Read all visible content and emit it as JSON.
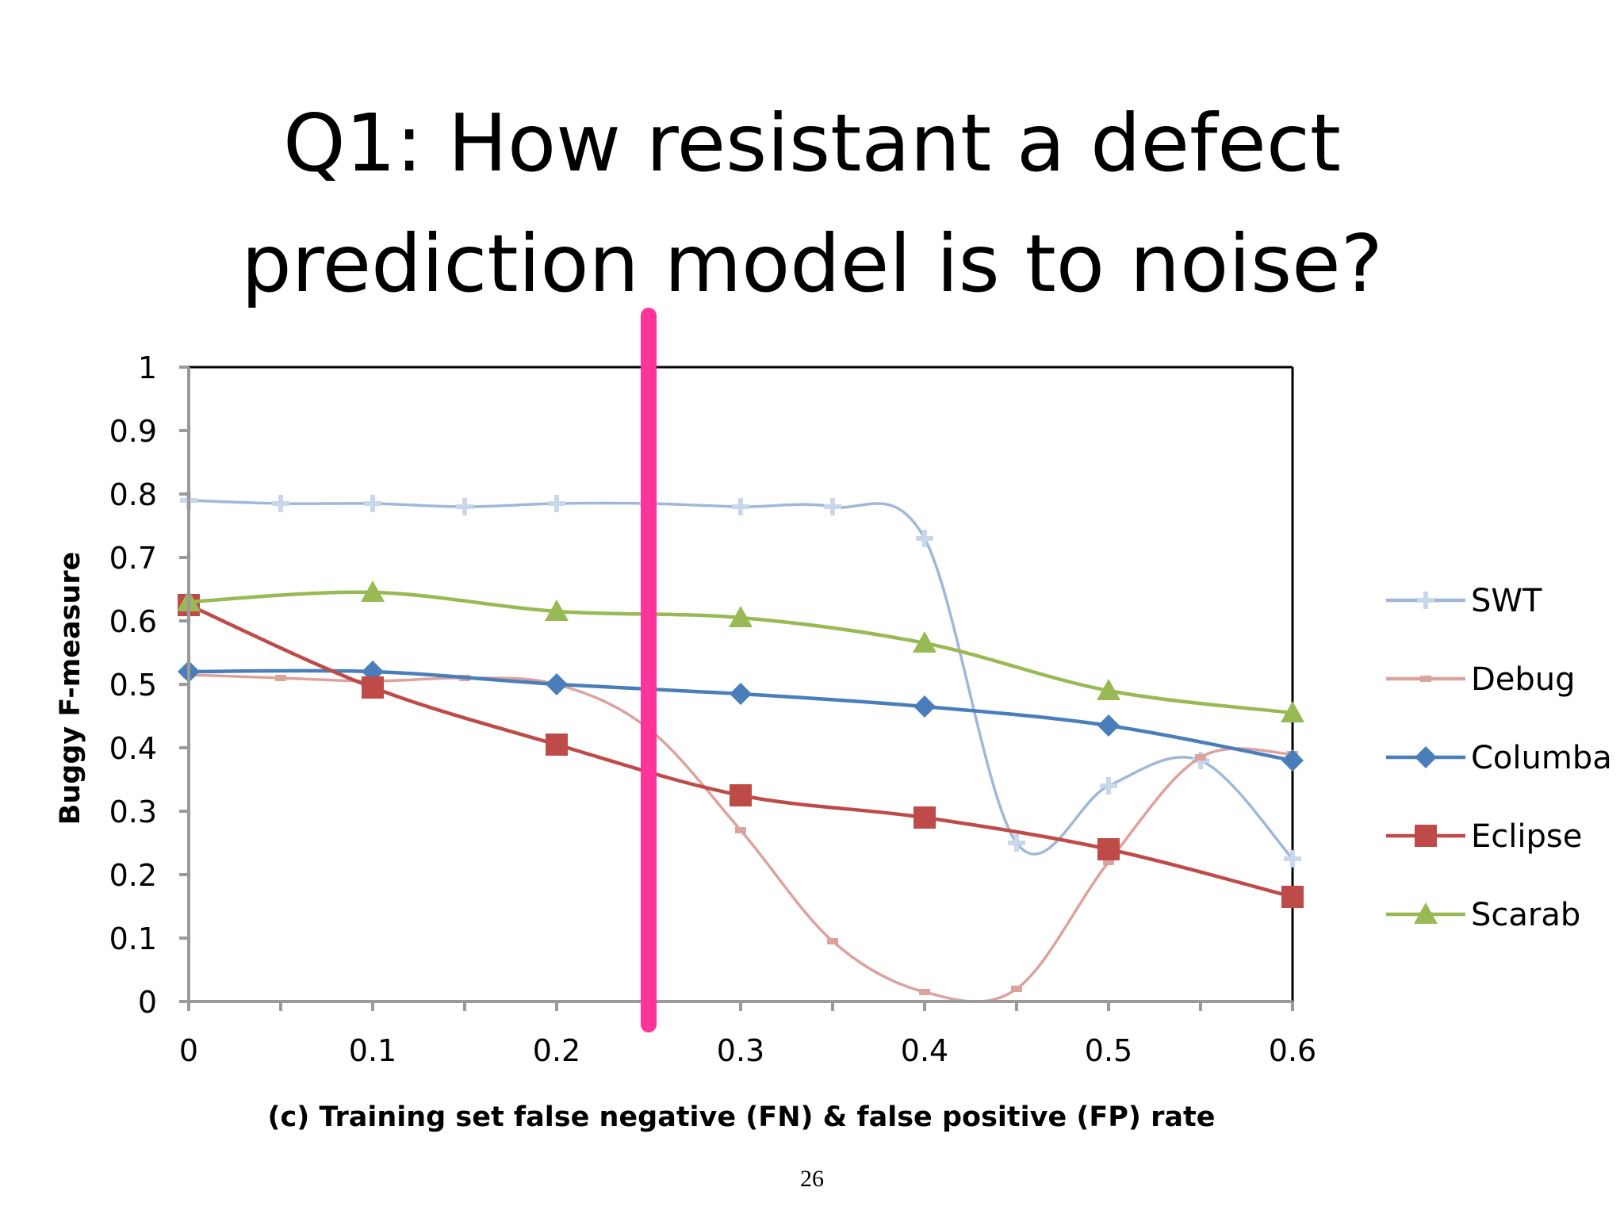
{
  "slide": {
    "title_line1": "Q1: How resistant a defect",
    "title_line2": "prediction model is to noise?",
    "page_number": "26"
  },
  "chart_data": {
    "type": "line",
    "title": "",
    "xlabel": "(c) Training set false negative (FN) & false positive (FP) rate",
    "ylabel": "Buggy F-measure",
    "xlim": [
      0,
      0.6
    ],
    "ylim": [
      0,
      1
    ],
    "x_ticks": [
      "0",
      "0.1",
      "0.2",
      "0.3",
      "0.4",
      "0.5",
      "0.6"
    ],
    "y_ticks": [
      "0",
      "0.1",
      "0.2",
      "0.3",
      "0.4",
      "0.5",
      "0.6",
      "0.7",
      "0.8",
      "0.9",
      "1"
    ],
    "legend_position": "right",
    "grid": false,
    "marker_line": {
      "x": 0.25,
      "color": "#ff3399"
    },
    "series": [
      {
        "name": "SWT",
        "color": "#9fb8d9",
        "marker": "plus",
        "x": [
          0,
          0.05,
          0.1,
          0.15,
          0.2,
          0.25,
          0.3,
          0.35,
          0.4,
          0.45,
          0.5,
          0.55,
          0.6
        ],
        "y": [
          0.79,
          0.785,
          0.785,
          0.78,
          0.785,
          0.785,
          0.78,
          0.78,
          0.73,
          0.25,
          0.34,
          0.38,
          0.225
        ]
      },
      {
        "name": "Debug",
        "color": "#dca29e",
        "marker": "dash",
        "x": [
          0,
          0.05,
          0.1,
          0.15,
          0.2,
          0.25,
          0.3,
          0.35,
          0.4,
          0.45,
          0.5,
          0.55,
          0.6
        ],
        "y": [
          0.515,
          0.51,
          0.505,
          0.51,
          0.5,
          0.43,
          0.27,
          0.095,
          0.015,
          0.02,
          0.22,
          0.385,
          0.39
        ]
      },
      {
        "name": "Columba",
        "color": "#4a7ebb",
        "marker": "diamond",
        "x": [
          0,
          0.1,
          0.2,
          0.3,
          0.4,
          0.5,
          0.6
        ],
        "y": [
          0.52,
          0.52,
          0.5,
          0.485,
          0.465,
          0.435,
          0.38
        ]
      },
      {
        "name": "Eclipse",
        "color": "#be4b48",
        "marker": "square",
        "x": [
          0,
          0.1,
          0.2,
          0.3,
          0.4,
          0.5,
          0.6
        ],
        "y": [
          0.625,
          0.495,
          0.405,
          0.325,
          0.29,
          0.24,
          0.165
        ]
      },
      {
        "name": "Scarab",
        "color": "#98b954",
        "marker": "triangle",
        "x": [
          0,
          0.1,
          0.2,
          0.3,
          0.4,
          0.5,
          0.6
        ],
        "y": [
          0.63,
          0.645,
          0.615,
          0.605,
          0.565,
          0.49,
          0.455
        ]
      }
    ]
  }
}
